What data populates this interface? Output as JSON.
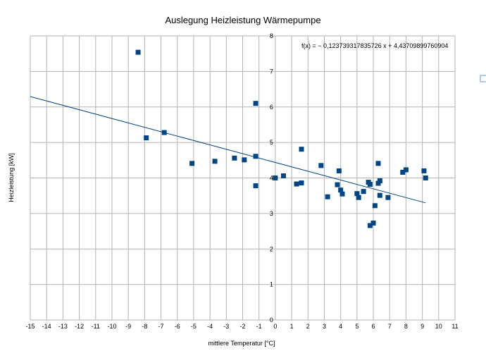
{
  "chart_data": {
    "type": "scatter",
    "title": "Auslegung Heizleistung Wärmepumpe",
    "xlabel": "mittlere Temperatur [°C]",
    "ylabel": "Heizleistung [kW]",
    "xlim": [
      -15,
      11
    ],
    "ylim": [
      0,
      8
    ],
    "xticks": [
      -15,
      -14,
      -13,
      -12,
      -11,
      -10,
      -9,
      -8,
      -7,
      -6,
      -5,
      -4,
      -3,
      -2,
      -1,
      0,
      1,
      2,
      3,
      4,
      5,
      6,
      7,
      8,
      9,
      10,
      11
    ],
    "yticks": [
      0,
      1,
      2,
      3,
      4,
      5,
      6,
      7,
      8
    ],
    "grid": true,
    "marker_color": "#004586",
    "trend_color": "#004586",
    "trendline": {
      "equation": "f(x) = − 0,123739317835726 x + 4,43709899760904",
      "slope": -0.123739317835726,
      "intercept": 4.43709899760904,
      "x_range": [
        -15,
        9.2
      ]
    },
    "points": [
      {
        "x": -8.4,
        "y": 7.54
      },
      {
        "x": -7.9,
        "y": 5.13
      },
      {
        "x": -6.8,
        "y": 5.28
      },
      {
        "x": -5.1,
        "y": 4.41
      },
      {
        "x": -3.7,
        "y": 4.47
      },
      {
        "x": -2.5,
        "y": 4.56
      },
      {
        "x": -1.9,
        "y": 4.51
      },
      {
        "x": -1.2,
        "y": 6.1
      },
      {
        "x": -1.2,
        "y": 4.61
      },
      {
        "x": -1.2,
        "y": 3.78
      },
      {
        "x": 0.0,
        "y": 4.0
      },
      {
        "x": 0.5,
        "y": 4.06
      },
      {
        "x": 1.3,
        "y": 3.83
      },
      {
        "x": 1.6,
        "y": 4.81
      },
      {
        "x": 1.6,
        "y": 3.86
      },
      {
        "x": 2.8,
        "y": 4.35
      },
      {
        "x": 3.2,
        "y": 3.47
      },
      {
        "x": 3.8,
        "y": 3.81
      },
      {
        "x": 3.9,
        "y": 4.2
      },
      {
        "x": 4.0,
        "y": 3.66
      },
      {
        "x": 4.1,
        "y": 3.55
      },
      {
        "x": 5.0,
        "y": 3.56
      },
      {
        "x": 5.1,
        "y": 3.45
      },
      {
        "x": 5.4,
        "y": 3.62
      },
      {
        "x": 5.7,
        "y": 3.88
      },
      {
        "x": 5.8,
        "y": 3.82
      },
      {
        "x": 5.8,
        "y": 2.66
      },
      {
        "x": 6.0,
        "y": 2.73
      },
      {
        "x": 6.1,
        "y": 3.22
      },
      {
        "x": 6.3,
        "y": 3.85
      },
      {
        "x": 6.3,
        "y": 4.41
      },
      {
        "x": 6.4,
        "y": 3.51
      },
      {
        "x": 6.4,
        "y": 3.92
      },
      {
        "x": 6.9,
        "y": 3.45
      },
      {
        "x": 7.8,
        "y": 4.16
      },
      {
        "x": 8.0,
        "y": 4.23
      },
      {
        "x": 9.1,
        "y": 4.2
      },
      {
        "x": 9.2,
        "y": 4.0
      }
    ]
  }
}
